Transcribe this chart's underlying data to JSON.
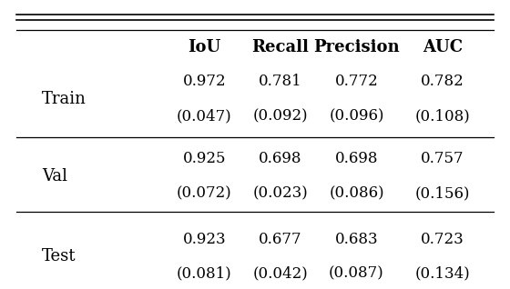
{
  "col_headers": [
    "IoU",
    "Recall",
    "Precision",
    "AUC"
  ],
  "row_headers": [
    "Train",
    "Val",
    "Test"
  ],
  "means": [
    [
      "0.972",
      "0.781",
      "0.772",
      "0.782"
    ],
    [
      "0.925",
      "0.698",
      "0.698",
      "0.757"
    ],
    [
      "0.923",
      "0.677",
      "0.683",
      "0.723"
    ]
  ],
  "stds": [
    [
      "(0.047)",
      "(0.092)",
      "(0.096)",
      "(0.108)"
    ],
    [
      "(0.072)",
      "(0.023)",
      "(0.086)",
      "(0.156)"
    ],
    [
      "(0.081)",
      "(0.042)",
      "(0.087)",
      "(0.134)"
    ]
  ],
  "fig_width": 5.6,
  "fig_height": 3.18,
  "dpi": 100,
  "bg_color": "#ffffff",
  "text_color": "#000000",
  "header_fontsize": 13,
  "cell_fontsize": 12,
  "row_header_fontsize": 13
}
